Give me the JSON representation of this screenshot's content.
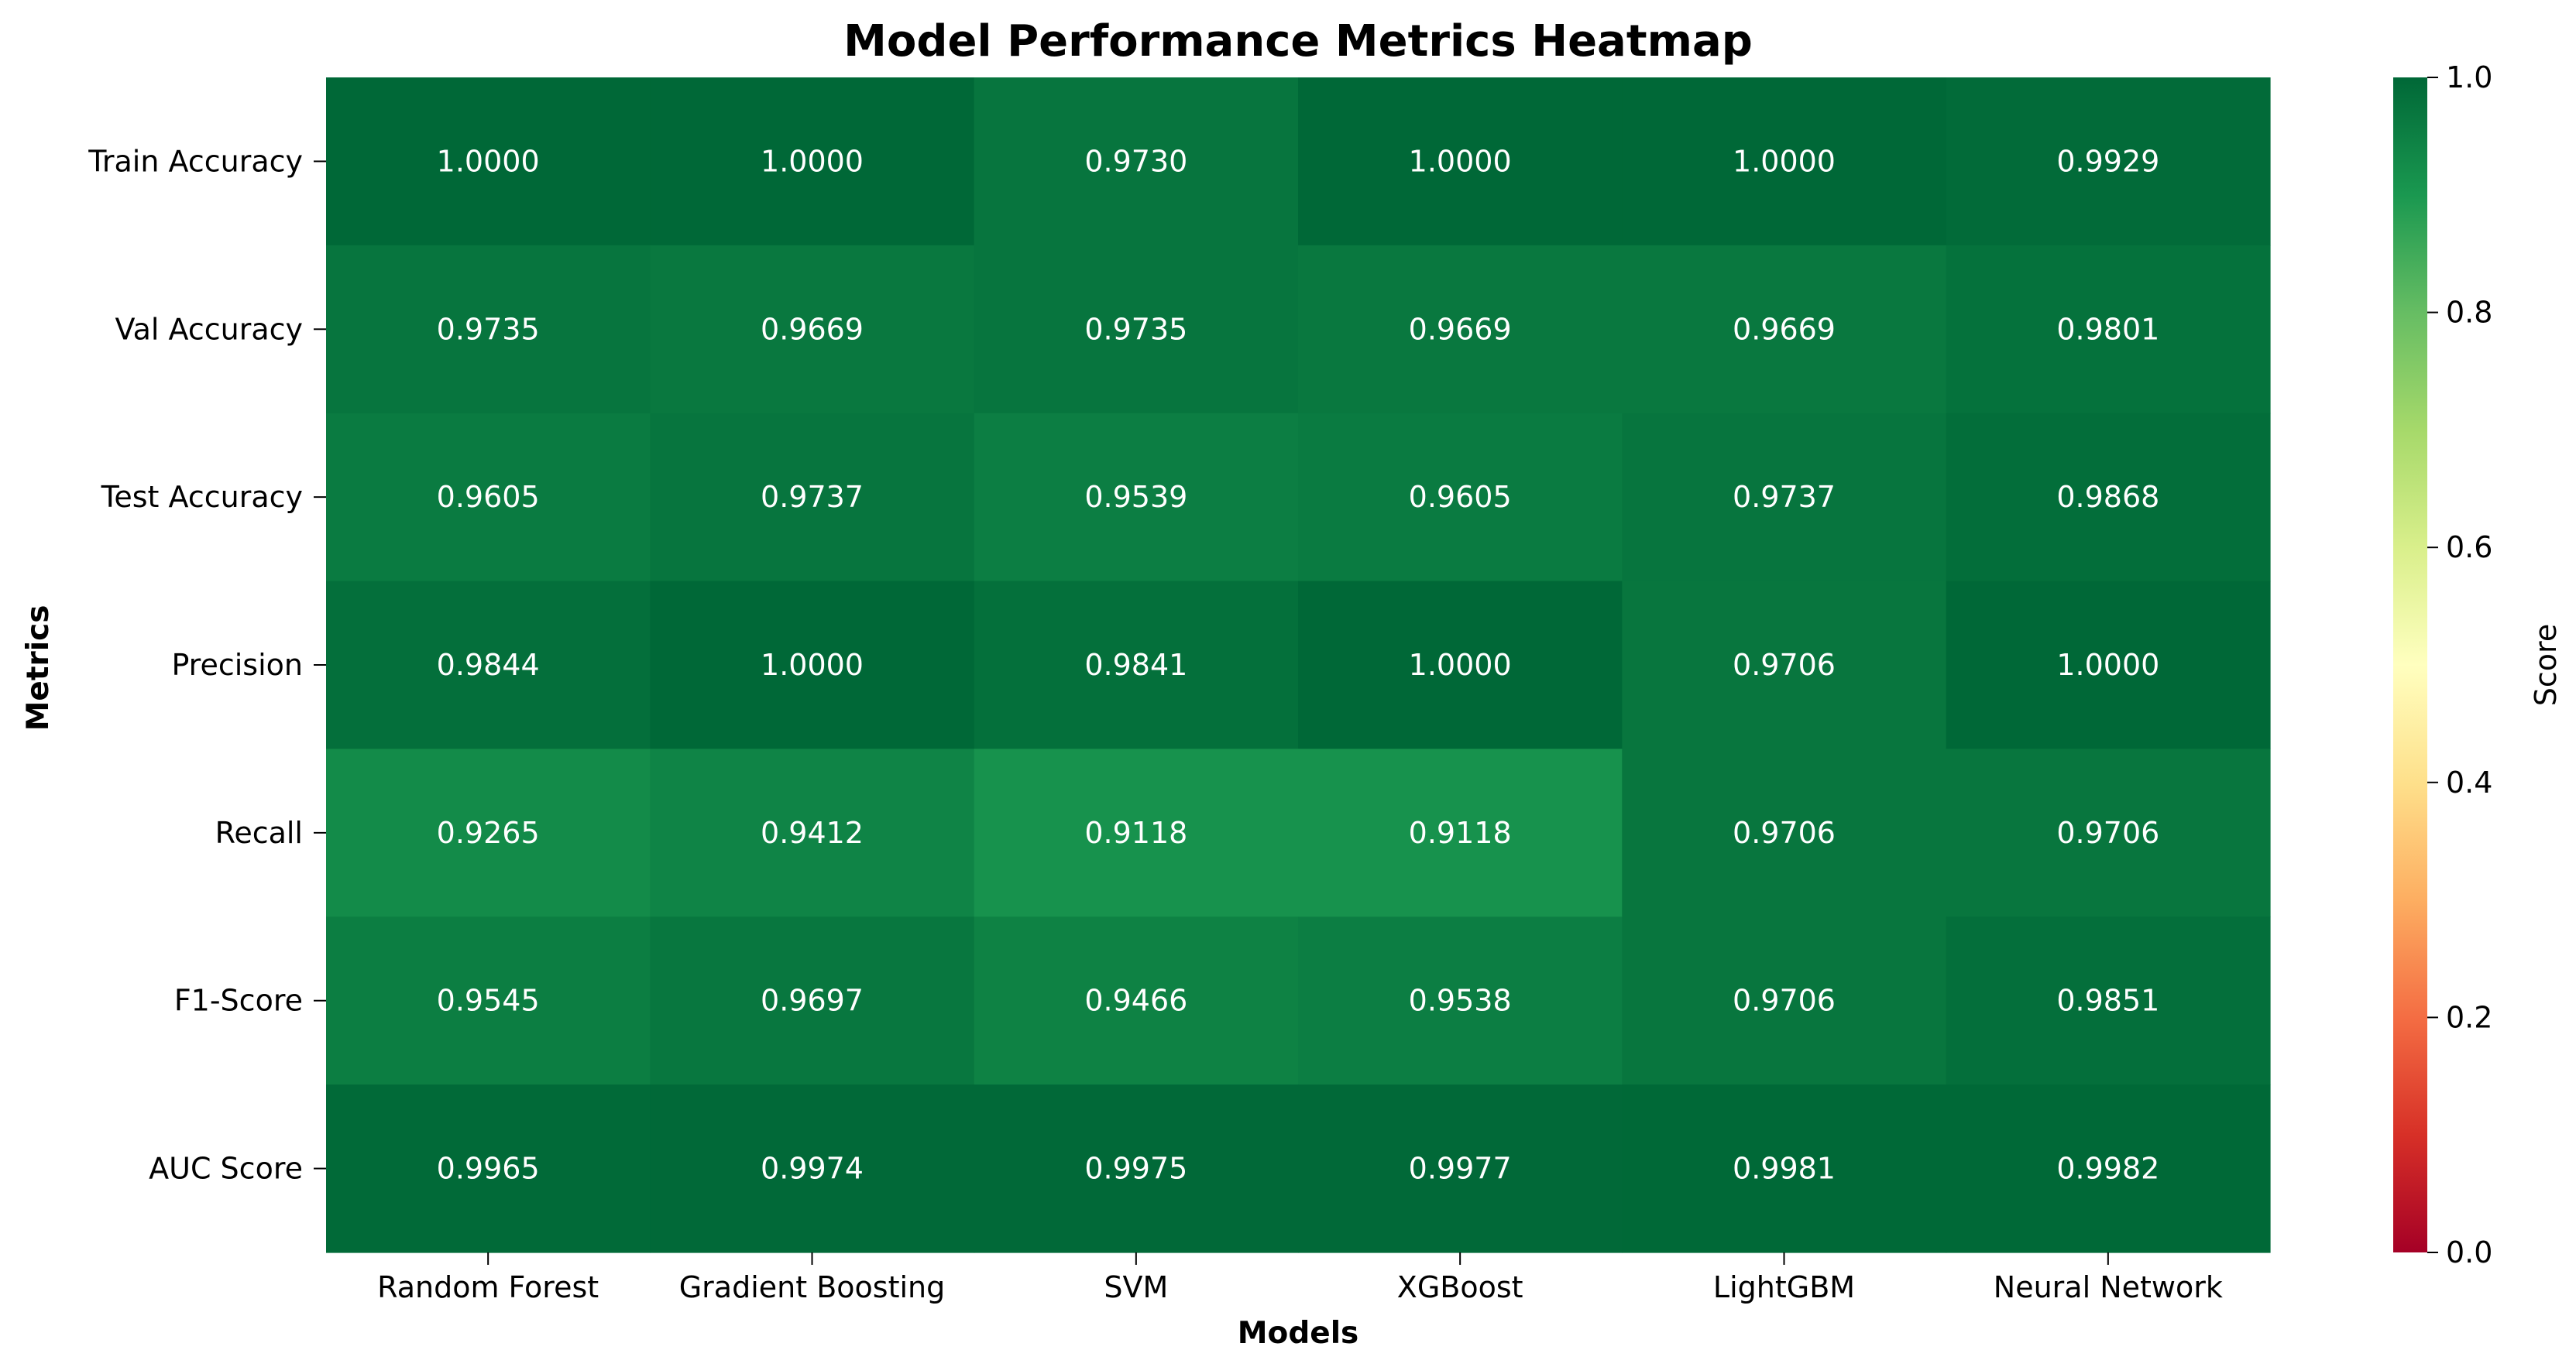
{
  "chart_data": {
    "type": "heatmap",
    "title": "Model Performance Metrics Heatmap",
    "xlabel": "Models",
    "ylabel": "Metrics",
    "x_categories": [
      "Random Forest",
      "Gradient Boosting",
      "SVM",
      "XGBoost",
      "LightGBM",
      "Neural Network"
    ],
    "y_categories": [
      "Train Accuracy",
      "Val Accuracy",
      "Test Accuracy",
      "Precision",
      "Recall",
      "F1-Score",
      "AUC Score"
    ],
    "values": [
      [
        1.0,
        1.0,
        0.973,
        1.0,
        1.0,
        0.9929
      ],
      [
        0.9735,
        0.9669,
        0.9735,
        0.9669,
        0.9669,
        0.9801
      ],
      [
        0.9605,
        0.9737,
        0.9539,
        0.9605,
        0.9737,
        0.9868
      ],
      [
        0.9844,
        1.0,
        0.9841,
        1.0,
        0.9706,
        1.0
      ],
      [
        0.9265,
        0.9412,
        0.9118,
        0.9118,
        0.9706,
        0.9706
      ],
      [
        0.9545,
        0.9697,
        0.9466,
        0.9538,
        0.9706,
        0.9851
      ],
      [
        0.9965,
        0.9974,
        0.9975,
        0.9977,
        0.9981,
        0.9982
      ]
    ],
    "value_format_decimals": 4,
    "colormap": "RdYlGn",
    "vmin": 0.0,
    "vmax": 1.0,
    "colorbar": {
      "label": "Score",
      "ticks": [
        0.0,
        0.2,
        0.4,
        0.6,
        0.8,
        1.0
      ],
      "tick_labels": [
        "0.0",
        "0.2",
        "0.4",
        "0.6",
        "0.8",
        "1.0"
      ]
    },
    "annotation_color": "#ffffff",
    "legend": "none",
    "grid": false
  }
}
